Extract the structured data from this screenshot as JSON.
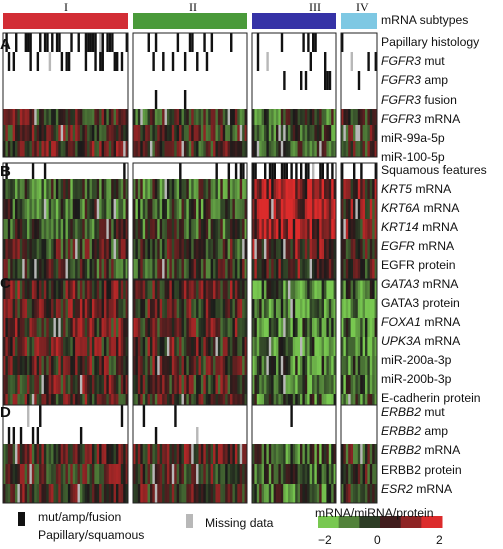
{
  "subtypes": {
    "labels": [
      "I",
      "II",
      "III",
      "IV"
    ],
    "colors": [
      "#d22d35",
      "#4a9a3a",
      "#3532a6",
      "#7ec8e3"
    ],
    "legend_label": "mRNA subtypes"
  },
  "panels": [
    "A",
    "B",
    "C",
    "D"
  ],
  "rows": {
    "A": [
      {
        "pre": "",
        "ital": "",
        "post": "Papillary histology",
        "kind": "binary"
      },
      {
        "pre": "",
        "ital": "FGFR3",
        "post": " mut",
        "kind": "binary"
      },
      {
        "pre": "",
        "ital": "FGFR3",
        "post": " amp",
        "kind": "binary"
      },
      {
        "pre": "",
        "ital": "FGFR3",
        "post": " fusion",
        "kind": "binary"
      },
      {
        "pre": "",
        "ital": "FGFR3",
        "post": " mRNA",
        "kind": "heat"
      },
      {
        "pre": "miR-99a-5p",
        "ital": "",
        "post": "",
        "kind": "heat"
      },
      {
        "pre": "miR-100-5p",
        "ital": "",
        "post": "",
        "kind": "heat"
      }
    ],
    "B": [
      {
        "pre": "Squamous features",
        "ital": "",
        "post": "",
        "kind": "binary"
      },
      {
        "pre": "",
        "ital": "KRT5",
        "post": " mRNA",
        "kind": "heat"
      },
      {
        "pre": "",
        "ital": "KRT6A",
        "post": " mRNA",
        "kind": "heat"
      },
      {
        "pre": "",
        "ital": "KRT14",
        "post": " mRNA",
        "kind": "heat"
      },
      {
        "pre": "",
        "ital": "EGFR",
        "post": " mRNA",
        "kind": "heat"
      },
      {
        "pre": "EGFR protein",
        "ital": "",
        "post": "",
        "kind": "heat"
      }
    ],
    "C": [
      {
        "pre": "",
        "ital": "GATA3",
        "post": " mRNA",
        "kind": "heat"
      },
      {
        "pre": "GATA3 protein",
        "ital": "",
        "post": "",
        "kind": "heat"
      },
      {
        "pre": "",
        "ital": "FOXA1",
        "post": " mRNA",
        "kind": "heat"
      },
      {
        "pre": "",
        "ital": "UPK3A",
        "post": " mRNA",
        "kind": "heat"
      },
      {
        "pre": "miR-200a-3p",
        "ital": "",
        "post": "",
        "kind": "heat"
      },
      {
        "pre": "miR-200b-3p",
        "ital": "",
        "post": "",
        "kind": "heat"
      },
      {
        "pre": "E-cadherin protein",
        "ital": "",
        "post": "",
        "kind": "heat"
      }
    ],
    "D": [
      {
        "pre": "",
        "ital": "ERBB2",
        "post": " mut",
        "kind": "binary"
      },
      {
        "pre": "",
        "ital": "ERBB2",
        "post": " amp",
        "kind": "binary"
      },
      {
        "pre": "",
        "ital": "ERBB2",
        "post": " mRNA",
        "kind": "heat"
      },
      {
        "pre": "ERBB2 protein",
        "ital": "",
        "post": "",
        "kind": "heat"
      },
      {
        "pre": "",
        "ital": "ESR2",
        "post": " mRNA",
        "kind": "heat"
      }
    ]
  },
  "legend": {
    "mut_label": "mut/amp/fusion",
    "pap_label": "Papillary/squamous",
    "missing_label": "Missing data",
    "scale_title": "mRNA/miRNA/protein",
    "ticks": [
      "−2",
      "0",
      "2"
    ],
    "colors": {
      "black": "#111111",
      "missing": "#b8b8b8",
      "low": "#78c850",
      "mid": "#1a1a1a",
      "high": "#dc2b2b"
    }
  }
}
